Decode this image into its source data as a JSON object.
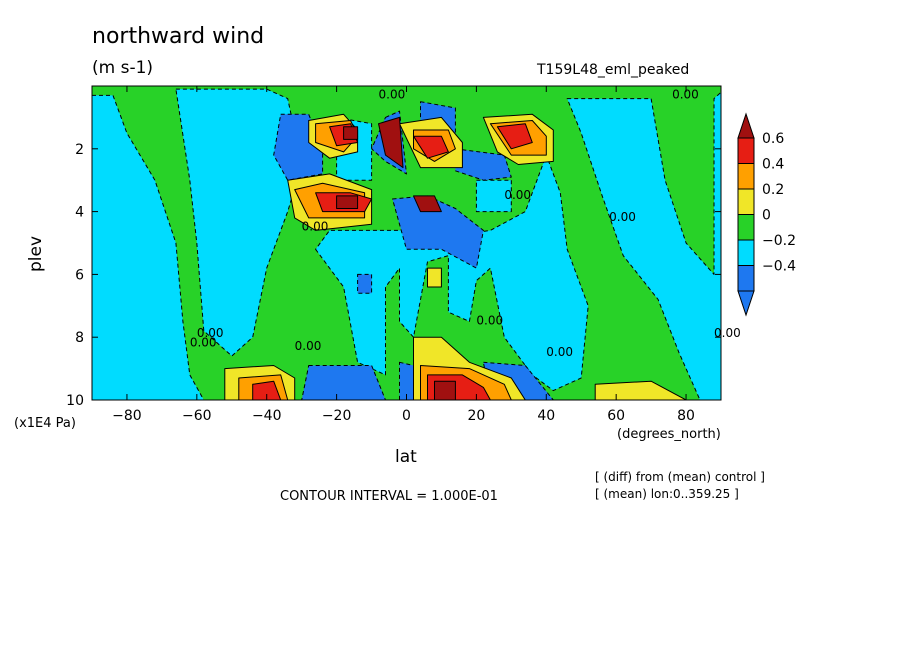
{
  "labels": {
    "title": "northward wind",
    "units": "(m s-1)",
    "run_name": "T159L48_eml_peaked",
    "ylabel": "plev",
    "yunits": "(x1E4 Pa)",
    "xlabel": "lat",
    "xunits": "(degrees_north)",
    "contour_interval": "CONTOUR INTERVAL = 1.000E-01",
    "note1": "[ (diff) from (mean) control ]",
    "note2": "[ (mean) lon:0..359.25 ]"
  },
  "colors": {
    "levels": [
      "#1e78f0",
      "#00dcff",
      "#28d228",
      "#f0e628",
      "#ffa000",
      "#e61e14",
      "#a01010"
    ],
    "line": "#000000"
  },
  "chart_data": {
    "type": "heatmap",
    "title": "northward wind",
    "xlabel": "lat",
    "ylabel": "plev",
    "xlim": [
      -90,
      90
    ],
    "ylim": [
      0,
      10
    ],
    "y_inverted": true,
    "x_ticks": [
      -80,
      -60,
      -40,
      -20,
      0,
      20,
      40,
      60,
      80
    ],
    "x_tick_labels": [
      "−80",
      "−60",
      "−40",
      "−20",
      "0",
      "20",
      "40",
      "60",
      "80"
    ],
    "y_ticks": [
      2,
      4,
      6,
      8,
      10
    ],
    "y_tick_labels": [
      "2",
      "4",
      "6",
      "8",
      "10"
    ],
    "colorbar": {
      "ticks": [
        0.6,
        0.4,
        0.2,
        0,
        -0.2,
        -0.4
      ],
      "tick_labels": [
        "0.6",
        "0.4",
        "0.2",
        "0",
        "−0.2",
        "−0.4"
      ]
    },
    "contour_labels": [
      "0.00",
      "0.00",
      "0.00",
      "0.00",
      "0.00",
      "0.00",
      "0.00",
      "0.00",
      "0.00",
      "0.00",
      "0.00"
    ],
    "grid": false,
    "background_level": 2,
    "regions": [
      {
        "level": 1,
        "points": [
          [
            -90,
            0.3
          ],
          [
            -84,
            0.3
          ],
          [
            -80,
            1.5
          ],
          [
            -72,
            3.0
          ],
          [
            -66,
            5.0
          ],
          [
            -64,
            7.5
          ],
          [
            -62,
            9.2
          ],
          [
            -58,
            10
          ],
          [
            -90,
            10
          ]
        ]
      },
      {
        "level": 1,
        "points": [
          [
            -66,
            0.1
          ],
          [
            -40,
            0.1
          ],
          [
            -34,
            0.4
          ],
          [
            -30,
            2.5
          ],
          [
            -34,
            4.0
          ],
          [
            -40,
            5.8
          ],
          [
            -44,
            8.0
          ],
          [
            -50,
            8.6
          ],
          [
            -58,
            7.8
          ],
          [
            -60,
            5.0
          ],
          [
            -62,
            3.0
          ]
        ]
      },
      {
        "level": 1,
        "points": [
          [
            -26,
            5.2
          ],
          [
            -18,
            6.4
          ],
          [
            -14,
            8.8
          ],
          [
            -6,
            9.2
          ],
          [
            -6,
            6.4
          ],
          [
            -2,
            5.8
          ],
          [
            -2,
            7.5
          ],
          [
            2,
            8.0
          ],
          [
            6,
            5.6
          ],
          [
            12,
            5.4
          ],
          [
            12,
            7.2
          ],
          [
            18,
            7.5
          ],
          [
            20,
            6.2
          ],
          [
            24,
            5.8
          ],
          [
            28,
            8.0
          ],
          [
            36,
            9.2
          ],
          [
            42,
            9.7
          ],
          [
            50,
            9.3
          ],
          [
            52,
            7.0
          ],
          [
            46,
            5.2
          ],
          [
            44,
            3.4
          ],
          [
            40,
            2.2
          ],
          [
            34,
            4.0
          ],
          [
            24,
            4.6
          ],
          [
            12,
            4.8
          ],
          [
            4,
            4.6
          ],
          [
            -4,
            4.6
          ],
          [
            -14,
            4.6
          ],
          [
            -22,
            4.6
          ]
        ]
      },
      {
        "level": 1,
        "points": [
          [
            46,
            0.4
          ],
          [
            70,
            0.4
          ],
          [
            74,
            3.0
          ],
          [
            80,
            5.0
          ],
          [
            88,
            6.0
          ],
          [
            88,
            0.4
          ],
          [
            90,
            0.2
          ],
          [
            90,
            10
          ],
          [
            84,
            10
          ],
          [
            78,
            8.5
          ],
          [
            72,
            6.8
          ],
          [
            62,
            5.4
          ],
          [
            56,
            3.5
          ],
          [
            50,
            1.5
          ]
        ]
      },
      {
        "level": 1,
        "points": [
          [
            -20,
            1.0
          ],
          [
            -10,
            1.2
          ],
          [
            -10,
            3.0
          ],
          [
            -20,
            3.0
          ]
        ]
      },
      {
        "level": 1,
        "points": [
          [
            20,
            3.0
          ],
          [
            30,
            3.0
          ],
          [
            30,
            4.0
          ],
          [
            20,
            4.0
          ]
        ]
      },
      {
        "level": 0,
        "points": [
          [
            -36,
            0.9
          ],
          [
            -28,
            0.9
          ],
          [
            -24,
            2.0
          ],
          [
            -24,
            2.8
          ],
          [
            -34,
            3.0
          ],
          [
            -38,
            2.2
          ]
        ]
      },
      {
        "level": 0,
        "points": [
          [
            -6,
            1.0
          ],
          [
            -2,
            0.8
          ],
          [
            0,
            2.8
          ],
          [
            -6,
            2.4
          ],
          [
            -10,
            2.0
          ]
        ]
      },
      {
        "level": 0,
        "points": [
          [
            -4,
            3.6
          ],
          [
            6,
            3.5
          ],
          [
            14,
            3.9
          ],
          [
            22,
            4.6
          ],
          [
            20,
            5.8
          ],
          [
            10,
            5.2
          ],
          [
            0,
            5.2
          ]
        ]
      },
      {
        "level": 0,
        "points": [
          [
            14,
            2.0
          ],
          [
            28,
            2.2
          ],
          [
            30,
            2.9
          ],
          [
            22,
            3.0
          ],
          [
            14,
            2.7
          ]
        ]
      },
      {
        "level": 0,
        "points": [
          [
            4,
            0.5
          ],
          [
            14,
            0.7
          ],
          [
            14,
            1.6
          ],
          [
            4,
            1.4
          ]
        ]
      },
      {
        "level": 0,
        "points": [
          [
            -28,
            8.9
          ],
          [
            -10,
            8.9
          ],
          [
            -6,
            10
          ],
          [
            -30,
            10
          ]
        ]
      },
      {
        "level": 0,
        "points": [
          [
            22,
            8.8
          ],
          [
            34,
            8.9
          ],
          [
            42,
            10
          ],
          [
            24,
            10
          ]
        ]
      },
      {
        "level": 0,
        "points": [
          [
            -14,
            6.0
          ],
          [
            -10,
            6.0
          ],
          [
            -10,
            6.6
          ],
          [
            -14,
            6.6
          ]
        ]
      },
      {
        "level": 0,
        "points": [
          [
            -2,
            8.8
          ],
          [
            2,
            8.9
          ],
          [
            2,
            10
          ],
          [
            -2,
            10
          ]
        ]
      },
      {
        "level": 3,
        "points": [
          [
            -28,
            1.1
          ],
          [
            -18,
            0.9
          ],
          [
            -14,
            1.4
          ],
          [
            -14,
            2.1
          ],
          [
            -22,
            2.3
          ],
          [
            -28,
            1.8
          ]
        ]
      },
      {
        "level": 3,
        "points": [
          [
            -34,
            3.0
          ],
          [
            -22,
            2.8
          ],
          [
            -10,
            3.3
          ],
          [
            -10,
            4.4
          ],
          [
            -26,
            4.6
          ],
          [
            -32,
            4.2
          ]
        ]
      },
      {
        "level": 3,
        "points": [
          [
            -52,
            9.0
          ],
          [
            -38,
            8.9
          ],
          [
            -32,
            9.3
          ],
          [
            -32,
            10
          ],
          [
            -52,
            10
          ]
        ]
      },
      {
        "level": 3,
        "points": [
          [
            2,
            8.0
          ],
          [
            10,
            8.0
          ],
          [
            18,
            8.8
          ],
          [
            30,
            9.3
          ],
          [
            34,
            10
          ],
          [
            2,
            10
          ]
        ]
      },
      {
        "level": 3,
        "points": [
          [
            22,
            1.0
          ],
          [
            36,
            0.9
          ],
          [
            42,
            1.4
          ],
          [
            42,
            2.4
          ],
          [
            32,
            2.5
          ],
          [
            26,
            2.1
          ]
        ]
      },
      {
        "level": 3,
        "points": [
          [
            -2,
            1.2
          ],
          [
            10,
            1.0
          ],
          [
            16,
            1.8
          ],
          [
            16,
            2.6
          ],
          [
            4,
            2.6
          ]
        ]
      },
      {
        "level": 3,
        "points": [
          [
            6,
            5.8
          ],
          [
            10,
            5.8
          ],
          [
            10,
            6.4
          ],
          [
            6,
            6.4
          ]
        ]
      },
      {
        "level": 3,
        "points": [
          [
            54,
            9.5
          ],
          [
            70,
            9.4
          ],
          [
            80,
            10
          ],
          [
            54,
            10
          ]
        ]
      },
      {
        "level": 4,
        "points": [
          [
            -26,
            1.2
          ],
          [
            -16,
            1.1
          ],
          [
            -14,
            1.6
          ],
          [
            -18,
            2.1
          ],
          [
            -26,
            1.8
          ]
        ]
      },
      {
        "level": 4,
        "points": [
          [
            -32,
            3.3
          ],
          [
            -24,
            3.1
          ],
          [
            -12,
            3.4
          ],
          [
            -12,
            4.2
          ],
          [
            -28,
            4.2
          ]
        ]
      },
      {
        "level": 4,
        "points": [
          [
            -48,
            9.3
          ],
          [
            -36,
            9.2
          ],
          [
            -34,
            10
          ],
          [
            -48,
            10
          ]
        ]
      },
      {
        "level": 4,
        "points": [
          [
            4,
            8.9
          ],
          [
            18,
            9.0
          ],
          [
            28,
            9.5
          ],
          [
            30,
            10
          ],
          [
            4,
            10
          ]
        ]
      },
      {
        "level": 4,
        "points": [
          [
            24,
            1.2
          ],
          [
            36,
            1.1
          ],
          [
            40,
            1.6
          ],
          [
            40,
            2.2
          ],
          [
            30,
            2.2
          ]
        ]
      },
      {
        "level": 4,
        "points": [
          [
            2,
            1.4
          ],
          [
            12,
            1.4
          ],
          [
            14,
            2.0
          ],
          [
            8,
            2.4
          ],
          [
            2,
            2.0
          ]
        ]
      },
      {
        "level": 5,
        "points": [
          [
            -22,
            1.3
          ],
          [
            -16,
            1.2
          ],
          [
            -14,
            1.8
          ],
          [
            -20,
            1.9
          ]
        ]
      },
      {
        "level": 5,
        "points": [
          [
            -26,
            3.4
          ],
          [
            -16,
            3.4
          ],
          [
            -10,
            3.6
          ],
          [
            -12,
            4.0
          ],
          [
            -24,
            4.0
          ]
        ]
      },
      {
        "level": 5,
        "points": [
          [
            -44,
            9.5
          ],
          [
            -38,
            9.4
          ],
          [
            -36,
            10
          ],
          [
            -44,
            10
          ]
        ]
      },
      {
        "level": 5,
        "points": [
          [
            6,
            9.2
          ],
          [
            16,
            9.2
          ],
          [
            22,
            9.6
          ],
          [
            24,
            10
          ],
          [
            6,
            10
          ]
        ]
      },
      {
        "level": 5,
        "points": [
          [
            26,
            1.3
          ],
          [
            34,
            1.2
          ],
          [
            36,
            1.8
          ],
          [
            30,
            2.0
          ]
        ]
      },
      {
        "level": 5,
        "points": [
          [
            2,
            1.6
          ],
          [
            10,
            1.6
          ],
          [
            12,
            2.1
          ],
          [
            6,
            2.3
          ]
        ]
      },
      {
        "level": 6,
        "points": [
          [
            -18,
            1.3
          ],
          [
            -14,
            1.3
          ],
          [
            -14,
            1.7
          ],
          [
            -18,
            1.7
          ]
        ]
      },
      {
        "level": 6,
        "points": [
          [
            -20,
            3.5
          ],
          [
            -14,
            3.5
          ],
          [
            -14,
            3.9
          ],
          [
            -20,
            3.9
          ]
        ]
      },
      {
        "level": 6,
        "points": [
          [
            8,
            9.4
          ],
          [
            14,
            9.4
          ],
          [
            14,
            10
          ],
          [
            8,
            10
          ]
        ]
      },
      {
        "level": 6,
        "points": [
          [
            -8,
            1.2
          ],
          [
            -2,
            1.0
          ],
          [
            -1,
            2.6
          ],
          [
            -6,
            2.2
          ]
        ]
      },
      {
        "level": 6,
        "points": [
          [
            2,
            3.5
          ],
          [
            8,
            3.5
          ],
          [
            10,
            4.0
          ],
          [
            4,
            4.0
          ]
        ]
      }
    ]
  }
}
